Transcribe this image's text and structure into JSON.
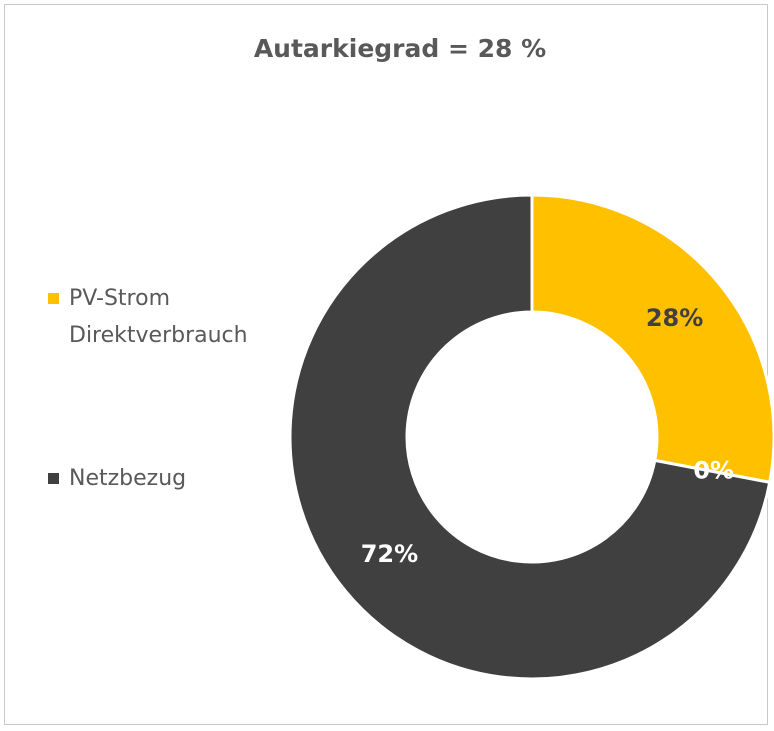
{
  "chart_data": {
    "type": "donut",
    "title": "Autarkiegrad = 28 %",
    "categories": [
      "PV-Strom Direktverbrauch",
      null,
      "Netzbezug"
    ],
    "values": [
      28,
      0,
      72
    ],
    "value_labels": [
      "28%",
      "0%",
      "72%"
    ],
    "colors": [
      "#FFC000",
      "#A5A5A5",
      "#404040"
    ]
  }
}
